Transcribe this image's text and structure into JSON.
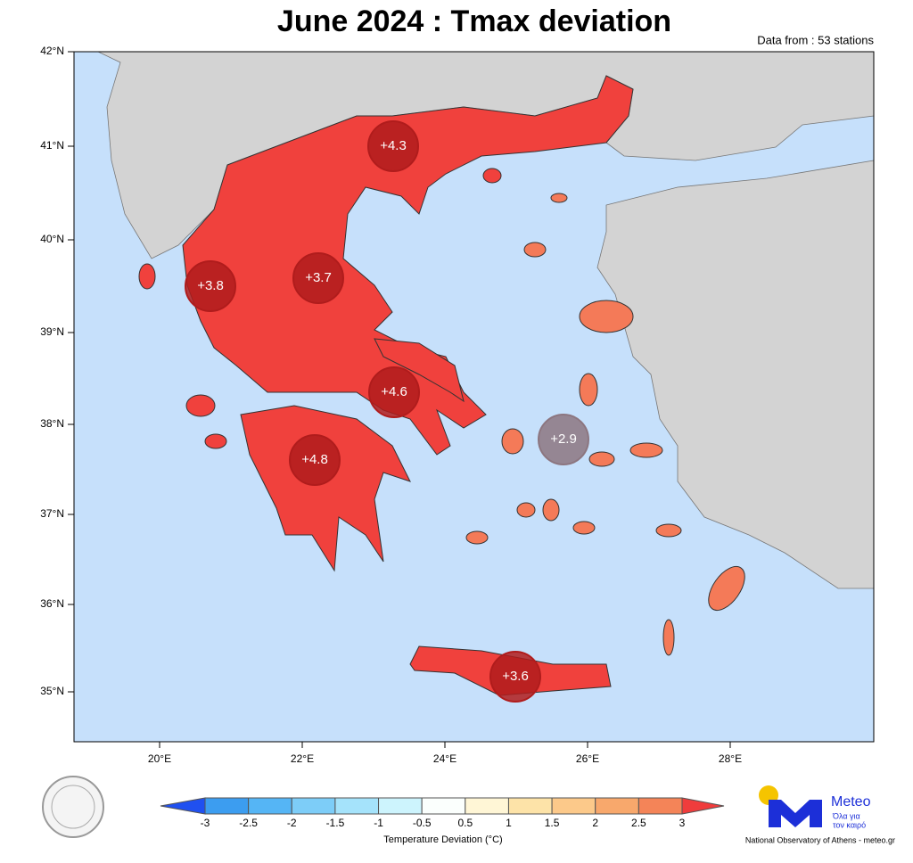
{
  "header": {
    "title": "June 2024 : Tmax deviation",
    "note": "Data from : 53 stations"
  },
  "map": {
    "lat_labels": [
      "42°N",
      "41°N",
      "40°N",
      "39°N",
      "38°N",
      "37°N",
      "36°N",
      "35°N"
    ],
    "lon_labels": [
      "20°E",
      "22°E",
      "24°E",
      "26°E",
      "28°E"
    ],
    "stations": [
      {
        "label": "+4.3",
        "color": "#b01c1c"
      },
      {
        "label": "+3.8",
        "color": "#b01c1c"
      },
      {
        "label": "+3.7",
        "color": "#b01c1c"
      },
      {
        "label": "+4.6",
        "color": "#b01c1c"
      },
      {
        "label": "+4.8",
        "color": "#b01c1c"
      },
      {
        "label": "+2.9",
        "color": "#8c7680"
      },
      {
        "label": "+3.6",
        "color": "#b01c1c"
      }
    ]
  },
  "colorbar": {
    "ticks": [
      -3,
      -2.5,
      -2,
      -1.5,
      -1,
      -0.5,
      0.5,
      1,
      1.5,
      2,
      2.5,
      3
    ],
    "title": "Temperature Deviation (°C)"
  },
  "logo": {
    "name": "Meteo",
    "tagline_1": "Όλα για",
    "tagline_2": "τον καιρό",
    "credit": "National Observatory of Athens - meteo.gr"
  }
}
